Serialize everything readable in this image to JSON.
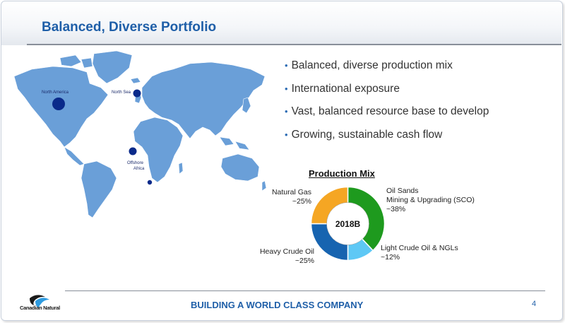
{
  "slide": {
    "title": "Balanced, Diverse Portfolio",
    "bullets": [
      "Balanced, diverse production mix",
      "International exposure",
      "Vast, balanced resource base to develop",
      "Growing, sustainable cash flow"
    ],
    "footer_tagline": "BUILDING A WORLD CLASS COMPANY",
    "page_number": "4",
    "logo_text": "Canadian Natural"
  },
  "map": {
    "labels": {
      "north_america": "North America",
      "north_sea": "North Sea",
      "offshore_africa_1": "Offshore",
      "offshore_africa_2": "Africa"
    },
    "land_color": "#6a9fd8",
    "marker_color": "#0a2a8a"
  },
  "chart_data": {
    "type": "pie",
    "title": "Production Mix",
    "center_label": "2018B",
    "slices": [
      {
        "label_lines": [
          "Oil Sands",
          "Mining & Upgrading (SCO)",
          "~38%"
        ],
        "value": 38,
        "color": "#1e9a1e"
      },
      {
        "label_lines": [
          "Light Crude Oil & NGLs",
          "~12%"
        ],
        "value": 12,
        "color": "#5ec8f5"
      },
      {
        "label_lines": [
          "Heavy Crude Oil",
          "~25%"
        ],
        "value": 25,
        "color": "#1764b0"
      },
      {
        "label_lines": [
          "Natural Gas",
          "~25%"
        ],
        "value": 25,
        "color": "#f5a623"
      }
    ]
  }
}
